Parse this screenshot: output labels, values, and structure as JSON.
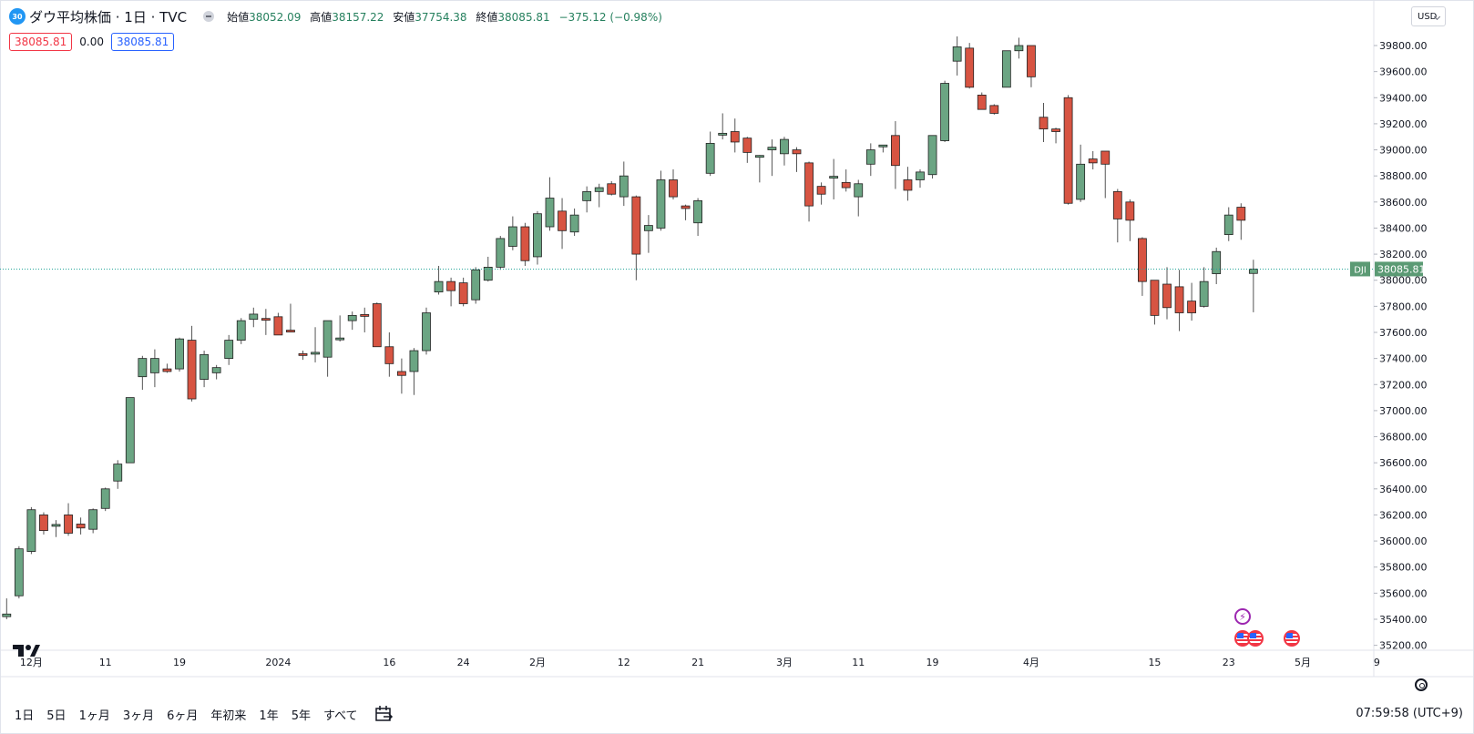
{
  "header": {
    "symbol_badge": "30",
    "symbol_title": "ダウ平均株価 · 1日 · TVC",
    "ohlc": [
      {
        "label": "始値",
        "value": "38052.09"
      },
      {
        "label": "高値",
        "value": "38157.22"
      },
      {
        "label": "安値",
        "value": "37754.38"
      },
      {
        "label": "終値",
        "value": "38085.81"
      }
    ],
    "change": "−375.12 (−0.98%)",
    "bid": "38085.81",
    "spread": "0.00",
    "ask": "38085.81",
    "currency": "USD"
  },
  "price_axis": {
    "ticks": [
      "39800.00",
      "39600.00",
      "39400.00",
      "39200.00",
      "39000.00",
      "38800.00",
      "38600.00",
      "38400.00",
      "38200.00",
      "38000.00",
      "37800.00",
      "37600.00",
      "37400.00",
      "37200.00",
      "37000.00",
      "36800.00",
      "36600.00",
      "36400.00",
      "36200.00",
      "36000.00",
      "35800.00",
      "35600.00",
      "35400.00",
      "35200.00"
    ],
    "last_label_symbol": "DJI",
    "last_label_value": "38085.81"
  },
  "time_axis": {
    "labels": [
      {
        "text": "12月",
        "bar": 2
      },
      {
        "text": "11",
        "bar": 8
      },
      {
        "text": "19",
        "bar": 14
      },
      {
        "text": "2024",
        "bar": 22
      },
      {
        "text": "16",
        "bar": 31
      },
      {
        "text": "24",
        "bar": 37
      },
      {
        "text": "2月",
        "bar": 43
      },
      {
        "text": "12",
        "bar": 50
      },
      {
        "text": "21",
        "bar": 56
      },
      {
        "text": "3月",
        "bar": 63
      },
      {
        "text": "11",
        "bar": 69
      },
      {
        "text": "19",
        "bar": 75
      },
      {
        "text": "4月",
        "bar": 83
      },
      {
        "text": "15",
        "bar": 93
      },
      {
        "text": "23",
        "bar": 99
      },
      {
        "text": "5月",
        "bar": 105
      },
      {
        "text": "9",
        "bar": 111
      }
    ]
  },
  "bottom_bar": {
    "ranges": [
      "1日",
      "5日",
      "1ヶ月",
      "3ヶ月",
      "6ヶ月",
      "年初来",
      "1年",
      "5年",
      "すべて"
    ],
    "clock": "07:59:58 (UTC+9)"
  },
  "colors": {
    "up": "#6ba583",
    "down": "#d75442",
    "wick": "#555555",
    "last_line": "#26a69a",
    "last_label_bg": "#5b9a74"
  },
  "chart_data": {
    "type": "candlestick",
    "symbol": "DJI",
    "ylim": [
      35150,
      39950
    ],
    "y_ticks": [
      35200,
      35400,
      35600,
      35800,
      36000,
      36200,
      36400,
      36600,
      36800,
      37000,
      37200,
      37400,
      37600,
      37800,
      38000,
      38200,
      38400,
      38600,
      38800,
      39000,
      39200,
      39400,
      39600,
      39800
    ],
    "last_price": 38085.81,
    "ohlc": [
      [
        35420,
        35560,
        35400,
        35440
      ],
      [
        35580,
        35960,
        35560,
        35940
      ],
      [
        35920,
        36260,
        35900,
        36240
      ],
      [
        36200,
        36220,
        36050,
        36080
      ],
      [
        36120,
        36160,
        36030,
        36120
      ],
      [
        36200,
        36290,
        36040,
        36060
      ],
      [
        36130,
        36180,
        36050,
        36100
      ],
      [
        36090,
        36250,
        36060,
        36240
      ],
      [
        36250,
        36410,
        36230,
        36400
      ],
      [
        36460,
        36620,
        36400,
        36590
      ],
      [
        36600,
        37100,
        36600,
        37100
      ],
      [
        37260,
        37420,
        37160,
        37400
      ],
      [
        37290,
        37470,
        37180,
        37400
      ],
      [
        37320,
        37360,
        37290,
        37300
      ],
      [
        37320,
        37560,
        37300,
        37550
      ],
      [
        37540,
        37650,
        37070,
        37090
      ],
      [
        37240,
        37460,
        37180,
        37430
      ],
      [
        37290,
        37350,
        37240,
        37330
      ],
      [
        37400,
        37580,
        37350,
        37540
      ],
      [
        37540,
        37710,
        37510,
        37690
      ],
      [
        37700,
        37790,
        37640,
        37740
      ],
      [
        37700,
        37780,
        37580,
        37690
      ],
      [
        37720,
        37750,
        37580,
        37580
      ],
      [
        37610,
        37820,
        37600,
        37600
      ],
      [
        37430,
        37460,
        37390,
        37420
      ],
      [
        37440,
        37640,
        37370,
        37440
      ],
      [
        37410,
        37680,
        37260,
        37690
      ],
      [
        37540,
        37730,
        37530,
        37550
      ],
      [
        37690,
        37760,
        37620,
        37730
      ],
      [
        37730,
        37790,
        37600,
        37720
      ],
      [
        37820,
        37830,
        37530,
        37490
      ],
      [
        37490,
        37600,
        37260,
        37360
      ],
      [
        37300,
        37400,
        37130,
        37270
      ],
      [
        37300,
        37480,
        37120,
        37460
      ],
      [
        37460,
        37790,
        37430,
        37750
      ],
      [
        37910,
        38110,
        37890,
        37990
      ],
      [
        37990,
        38020,
        37800,
        37920
      ],
      [
        37980,
        38020,
        37800,
        37820
      ],
      [
        37850,
        38100,
        37820,
        38080
      ],
      [
        38000,
        38180,
        37990,
        38100
      ],
      [
        38100,
        38340,
        38080,
        38320
      ],
      [
        38260,
        38490,
        38230,
        38410
      ],
      [
        38410,
        38440,
        38110,
        38150
      ],
      [
        38180,
        38530,
        38120,
        38510
      ],
      [
        38410,
        38790,
        38380,
        38630
      ],
      [
        38530,
        38630,
        38240,
        38380
      ],
      [
        38370,
        38550,
        38340,
        38500
      ],
      [
        38610,
        38720,
        38520,
        38680
      ],
      [
        38680,
        38740,
        38560,
        38710
      ],
      [
        38740,
        38760,
        38650,
        38660
      ],
      [
        38640,
        38910,
        38570,
        38800
      ],
      [
        38640,
        38650,
        38000,
        38200
      ],
      [
        38380,
        38500,
        38210,
        38420
      ],
      [
        38400,
        38840,
        38380,
        38770
      ],
      [
        38770,
        38850,
        38620,
        38640
      ],
      [
        38570,
        38580,
        38460,
        38550
      ],
      [
        38440,
        38630,
        38340,
        38610
      ],
      [
        38820,
        39140,
        38800,
        39050
      ],
      [
        39110,
        39280,
        39080,
        39120
      ],
      [
        39140,
        39240,
        38980,
        39060
      ],
      [
        39090,
        39100,
        38900,
        38980
      ],
      [
        38940,
        38960,
        38750,
        38950
      ],
      [
        39000,
        39080,
        38800,
        39020
      ],
      [
        38970,
        39100,
        38880,
        39080
      ],
      [
        39000,
        39020,
        38830,
        38970
      ],
      [
        38900,
        38910,
        38450,
        38570
      ],
      [
        38720,
        38750,
        38580,
        38660
      ],
      [
        38780,
        38930,
        38620,
        38790
      ],
      [
        38750,
        38850,
        38680,
        38710
      ],
      [
        38640,
        38770,
        38490,
        38740
      ],
      [
        38890,
        39050,
        38800,
        39000
      ],
      [
        39030,
        39030,
        38980,
        39030
      ],
      [
        39110,
        39220,
        38700,
        38880
      ],
      [
        38770,
        38870,
        38610,
        38690
      ],
      [
        38770,
        38850,
        38710,
        38830
      ],
      [
        38810,
        39080,
        38780,
        39110
      ],
      [
        39070,
        39530,
        39060,
        39510
      ],
      [
        39680,
        39870,
        39570,
        39790
      ],
      [
        39780,
        39820,
        39470,
        39480
      ],
      [
        39420,
        39440,
        39320,
        39310
      ],
      [
        39340,
        39350,
        39270,
        39280
      ],
      [
        39480,
        39760,
        39480,
        39760
      ],
      [
        39760,
        39860,
        39700,
        39800
      ],
      [
        39800,
        39800,
        39480,
        39560
      ],
      [
        39250,
        39360,
        39060,
        39160
      ],
      [
        39160,
        39170,
        39050,
        39140
      ],
      [
        39400,
        39420,
        38580,
        38590
      ],
      [
        38620,
        39040,
        38600,
        38890
      ],
      [
        38930,
        38990,
        38850,
        38900
      ],
      [
        38990,
        38990,
        38630,
        38890
      ],
      [
        38680,
        38700,
        38290,
        38470
      ],
      [
        38600,
        38620,
        38300,
        38460
      ],
      [
        38320,
        38330,
        37880,
        37990
      ],
      [
        38000,
        38000,
        37660,
        37730
      ],
      [
        37970,
        38100,
        37700,
        37790
      ],
      [
        37950,
        38080,
        37610,
        37750
      ],
      [
        37840,
        37980,
        37690,
        37750
      ],
      [
        37800,
        38100,
        37790,
        37990
      ],
      [
        38050,
        38250,
        37970,
        38220
      ],
      [
        38350,
        38560,
        38300,
        38500
      ],
      [
        38560,
        38590,
        38310,
        38460
      ],
      [
        38052.09,
        38157.22,
        37754.38,
        38085.81
      ]
    ]
  }
}
